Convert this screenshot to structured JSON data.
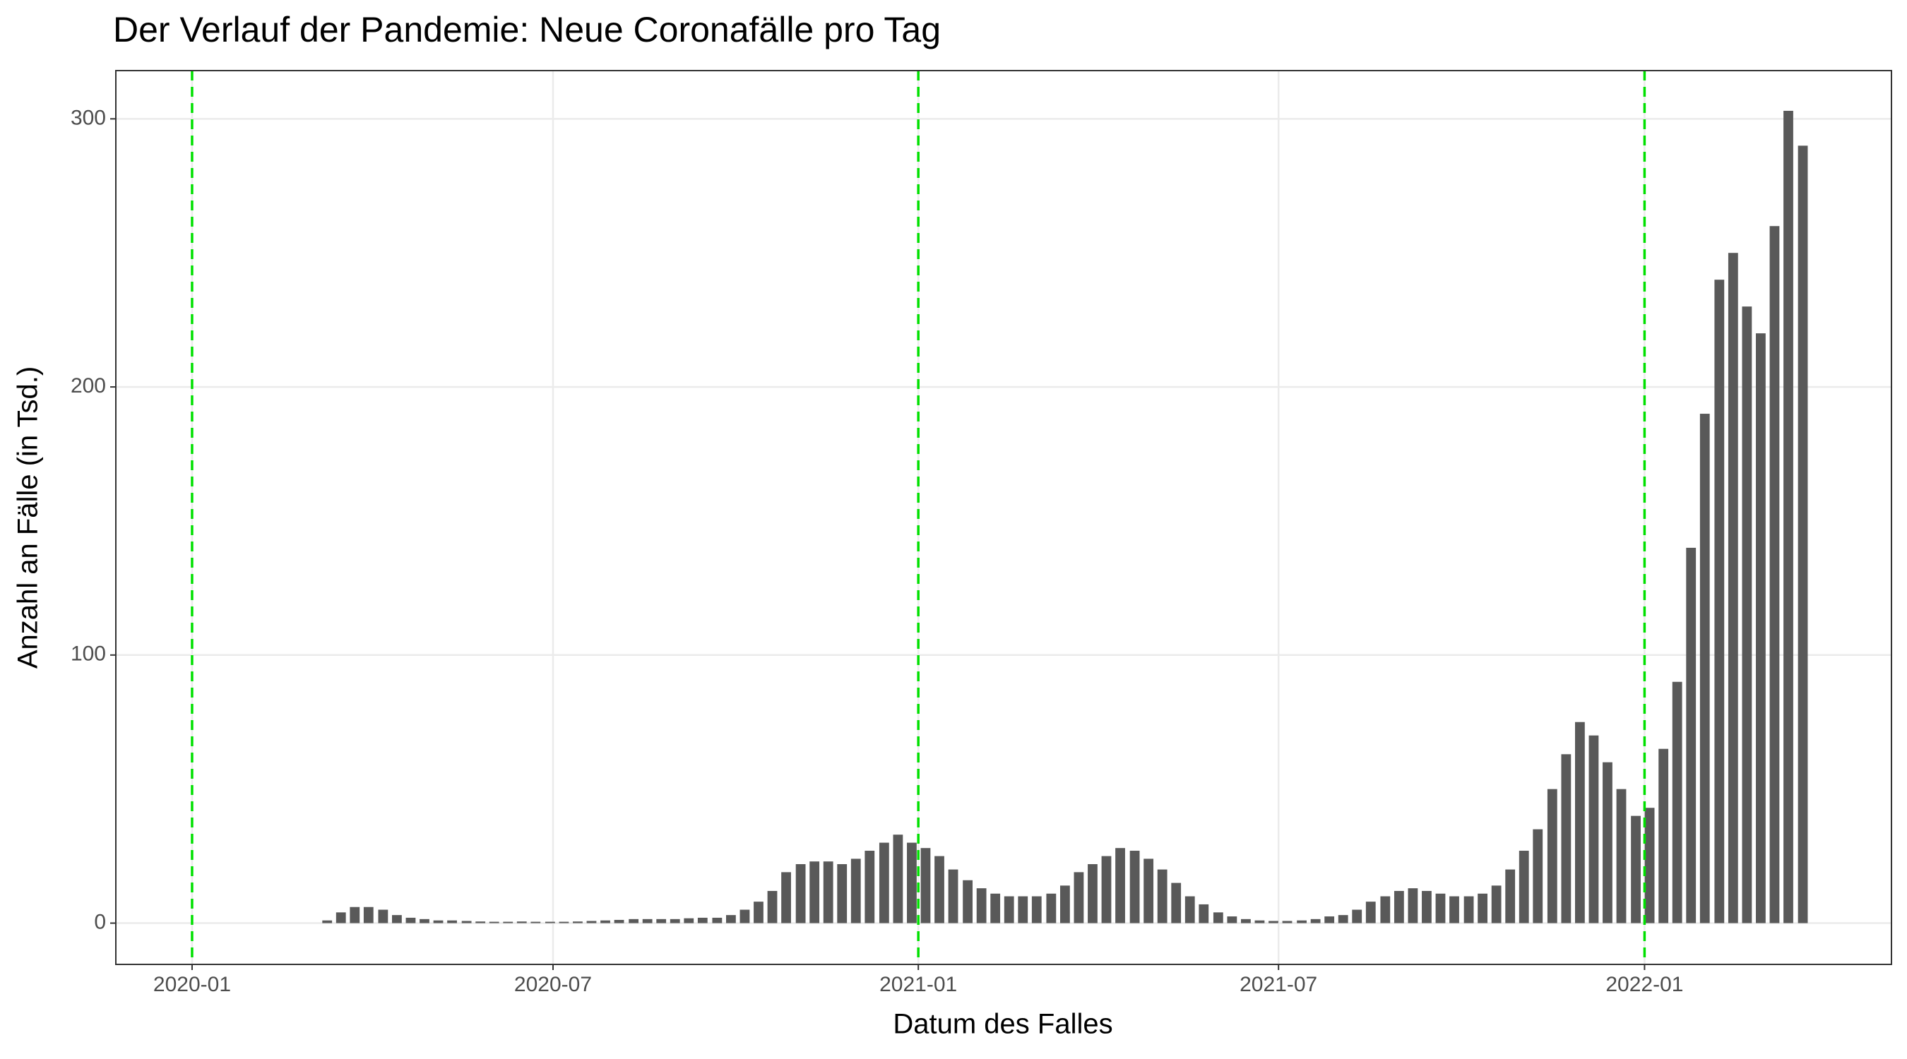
{
  "chart_data": {
    "type": "bar",
    "title": "Der Verlauf der Pandemie: Neue Coronafälle pro Tag",
    "x_label": "Datum des Falles",
    "y_label": "Anzahl an Fälle (in Tsd.)",
    "x": [
      2020.186,
      2020.205,
      2020.224,
      2020.243,
      2020.263,
      2020.282,
      2020.301,
      2020.32,
      2020.339,
      2020.358,
      2020.378,
      2020.397,
      2020.416,
      2020.435,
      2020.454,
      2020.473,
      2020.493,
      2020.512,
      2020.531,
      2020.55,
      2020.569,
      2020.588,
      2020.608,
      2020.627,
      2020.646,
      2020.665,
      2020.684,
      2020.703,
      2020.723,
      2020.742,
      2020.761,
      2020.78,
      2020.799,
      2020.818,
      2020.838,
      2020.857,
      2020.876,
      2020.895,
      2020.914,
      2020.933,
      2020.953,
      2020.972,
      2020.991,
      2021.01,
      2021.029,
      2021.048,
      2021.068,
      2021.087,
      2021.106,
      2021.125,
      2021.144,
      2021.163,
      2021.183,
      2021.202,
      2021.221,
      2021.24,
      2021.259,
      2021.278,
      2021.298,
      2021.317,
      2021.336,
      2021.355,
      2021.374,
      2021.393,
      2021.413,
      2021.432,
      2021.451,
      2021.47,
      2021.489,
      2021.508,
      2021.528,
      2021.547,
      2021.566,
      2021.585,
      2021.604,
      2021.623,
      2021.643,
      2021.662,
      2021.681,
      2021.7,
      2021.719,
      2021.738,
      2021.758,
      2021.777,
      2021.796,
      2021.815,
      2021.834,
      2021.853,
      2021.873,
      2021.892,
      2021.911,
      2021.93,
      2021.949,
      2021.968,
      2021.988,
      2022.007,
      2022.026,
      2022.045,
      2022.064,
      2022.083,
      2022.103,
      2022.122,
      2022.141,
      2022.16,
      2022.179,
      2022.198,
      2022.218
    ],
    "values": [
      1,
      4,
      6,
      6,
      5,
      3,
      2,
      1.5,
      1,
      1,
      0.8,
      0.6,
      0.5,
      0.5,
      0.6,
      0.5,
      0.5,
      0.5,
      0.6,
      0.8,
      1,
      1.2,
      1.5,
      1.5,
      1.5,
      1.5,
      1.8,
      2,
      2,
      3,
      5,
      8,
      12,
      19,
      22,
      23,
      23,
      22,
      24,
      27,
      30,
      33,
      30,
      28,
      25,
      20,
      16,
      13,
      11,
      10,
      10,
      10,
      11,
      14,
      19,
      22,
      25,
      28,
      27,
      24,
      20,
      15,
      10,
      7,
      4,
      2.5,
      1.5,
      1,
      0.8,
      0.8,
      1,
      1.5,
      2.5,
      3,
      5,
      8,
      10,
      12,
      13,
      12,
      11,
      10,
      10,
      11,
      14,
      20,
      27,
      35,
      50,
      63,
      75,
      70,
      60,
      50,
      40,
      43,
      65,
      90,
      140,
      190,
      240,
      250,
      230,
      220,
      260,
      303,
      290
    ],
    "color": "#595959",
    "xlim": [
      2019.895,
      2022.34
    ],
    "xticks": [
      {
        "value": 2020.0,
        "label": "2020-01"
      },
      {
        "value": 2020.497,
        "label": "2020-07"
      },
      {
        "value": 2021.0,
        "label": "2021-01"
      },
      {
        "value": 2021.496,
        "label": "2021-07"
      },
      {
        "value": 2022.0,
        "label": "2022-01"
      }
    ],
    "ylim": [
      -15.4,
      318
    ],
    "yticks": [
      0,
      100,
      200,
      300
    ],
    "vlines": [
      2020.0,
      2021.0,
      2022.0
    ],
    "vline_color": "#00e000",
    "grid": true
  }
}
